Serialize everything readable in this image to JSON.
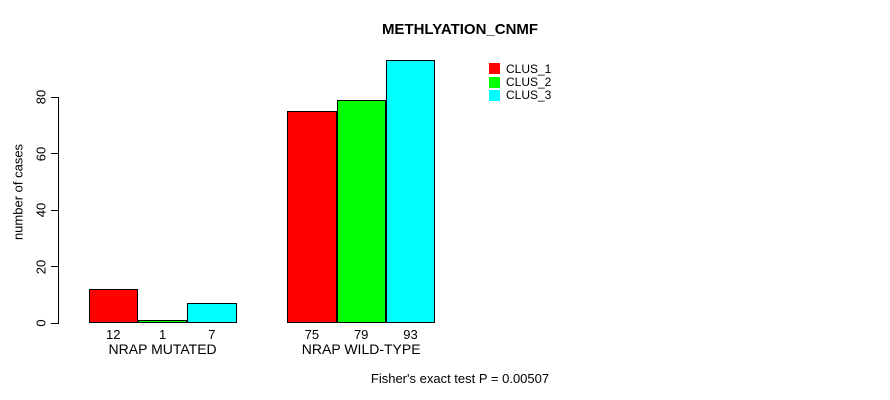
{
  "chart_data": {
    "type": "bar",
    "title": "METHLYATION_CNMF",
    "ylabel": "number of cases",
    "xlabel": "",
    "categories": [
      "NRAP MUTATED",
      "NRAP WILD-TYPE"
    ],
    "series": [
      {
        "name": "CLUS_1",
        "color": "#ff0000",
        "values": [
          12,
          75
        ]
      },
      {
        "name": "CLUS_2",
        "color": "#00ff00",
        "values": [
          1,
          79
        ]
      },
      {
        "name": "CLUS_3",
        "color": "#00ffff",
        "values": [
          7,
          93
        ]
      }
    ],
    "yticks": [
      0,
      20,
      40,
      60,
      80
    ],
    "ylim": [
      0,
      93
    ],
    "grid": false,
    "bar_value_labels": [
      12,
      1,
      7,
      75,
      79,
      93
    ],
    "legend_position": "top-right",
    "legend_box": false,
    "axis_color": "#000000",
    "background_color": "#ffffff",
    "annotation": "Fisher's exact test P = 0.00507"
  }
}
